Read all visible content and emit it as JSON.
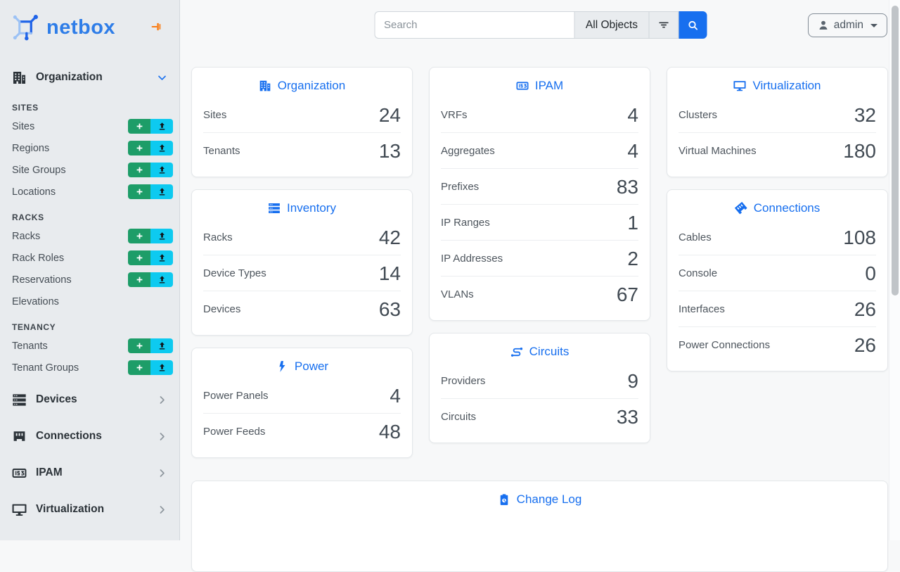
{
  "colors": {
    "accent": "#176fef",
    "success": "#1d9d68",
    "info": "#0dcaf0",
    "pin": "#f97d16",
    "logo_dark": "#1f63e8",
    "logo_light": "#9cc2f5"
  },
  "brand": {
    "name": "netbox"
  },
  "search": {
    "placeholder": "Search",
    "scope": "All Objects"
  },
  "user": {
    "name": "admin"
  },
  "sidebar": {
    "groups": [
      {
        "label": "Organization",
        "icon": "building",
        "expanded": true,
        "sections": [
          {
            "title": "SITES",
            "items": [
              {
                "label": "Sites",
                "actions": true
              },
              {
                "label": "Regions",
                "actions": true
              },
              {
                "label": "Site Groups",
                "actions": true
              },
              {
                "label": "Locations",
                "actions": true
              }
            ]
          },
          {
            "title": "RACKS",
            "items": [
              {
                "label": "Racks",
                "actions": true
              },
              {
                "label": "Rack Roles",
                "actions": true
              },
              {
                "label": "Reservations",
                "actions": true
              },
              {
                "label": "Elevations",
                "actions": false
              }
            ]
          },
          {
            "title": "TENANCY",
            "items": [
              {
                "label": "Tenants",
                "actions": true
              },
              {
                "label": "Tenant Groups",
                "actions": true
              }
            ]
          }
        ]
      },
      {
        "label": "Devices",
        "icon": "rack",
        "expanded": false
      },
      {
        "label": "Connections",
        "icon": "port",
        "expanded": false
      },
      {
        "label": "IPAM",
        "icon": "counter",
        "expanded": false
      },
      {
        "label": "Virtualization",
        "icon": "monitor",
        "expanded": false
      }
    ]
  },
  "dashboard": {
    "columns": [
      {
        "cards": [
          {
            "title": "Organization",
            "icon": "building",
            "rows": [
              {
                "label": "Sites",
                "value": "24"
              },
              {
                "label": "Tenants",
                "value": "13"
              }
            ]
          },
          {
            "title": "Inventory",
            "icon": "rack",
            "rows": [
              {
                "label": "Racks",
                "value": "42"
              },
              {
                "label": "Device Types",
                "value": "14"
              },
              {
                "label": "Devices",
                "value": "63"
              }
            ]
          },
          {
            "title": "Power",
            "icon": "bolt",
            "rows": [
              {
                "label": "Power Panels",
                "value": "4"
              },
              {
                "label": "Power Feeds",
                "value": "48"
              }
            ]
          }
        ]
      },
      {
        "cards": [
          {
            "title": "IPAM",
            "icon": "counter",
            "rows": [
              {
                "label": "VRFs",
                "value": "4"
              },
              {
                "label": "Aggregates",
                "value": "4"
              },
              {
                "label": "Prefixes",
                "value": "83"
              },
              {
                "label": "IP Ranges",
                "value": "1"
              },
              {
                "label": "IP Addresses",
                "value": "2"
              },
              {
                "label": "VLANs",
                "value": "67"
              }
            ]
          },
          {
            "title": "Circuits",
            "icon": "route",
            "rows": [
              {
                "label": "Providers",
                "value": "9"
              },
              {
                "label": "Circuits",
                "value": "33"
              }
            ]
          }
        ]
      },
      {
        "cards": [
          {
            "title": "Virtualization",
            "icon": "monitor",
            "rows": [
              {
                "label": "Clusters",
                "value": "32"
              },
              {
                "label": "Virtual Machines",
                "value": "180"
              }
            ]
          },
          {
            "title": "Connections",
            "icon": "plug",
            "rows": [
              {
                "label": "Cables",
                "value": "108"
              },
              {
                "label": "Console",
                "value": "0"
              },
              {
                "label": "Interfaces",
                "value": "26"
              },
              {
                "label": "Power Connections",
                "value": "26"
              }
            ]
          }
        ]
      }
    ]
  },
  "changelog": {
    "title": "Change Log"
  }
}
